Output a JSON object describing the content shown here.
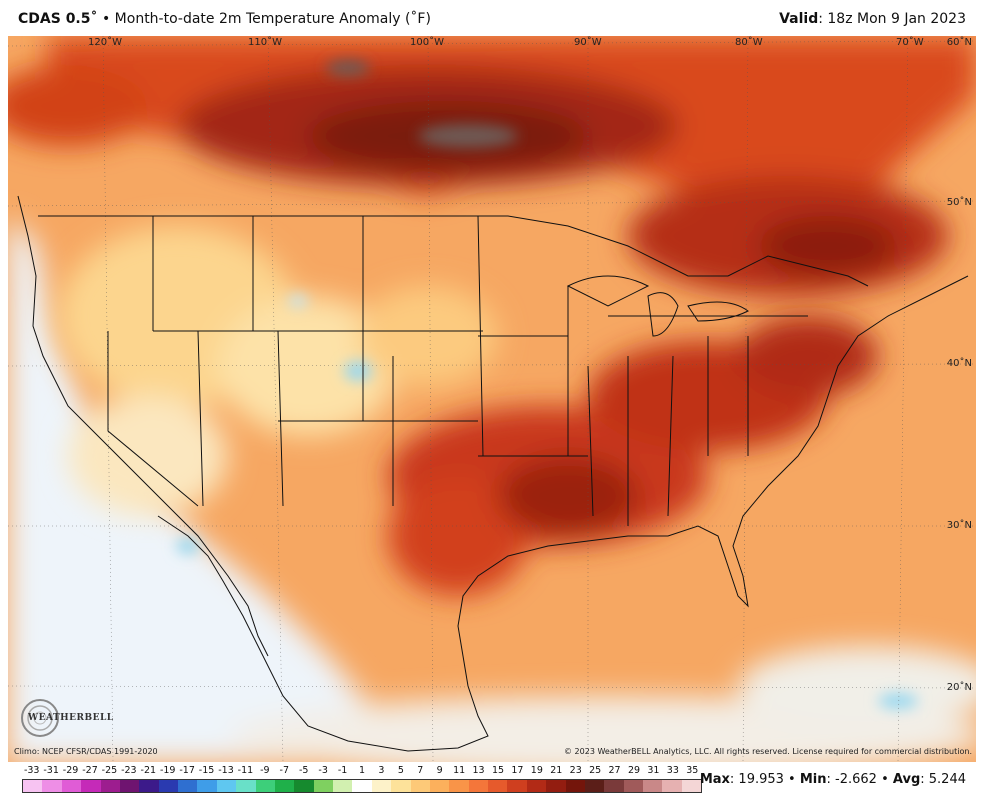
{
  "header": {
    "model": "CDAS 0.5˚",
    "bullet": "•",
    "title": "Month-to-date 2m Temperature Anomaly (˚F)",
    "valid_label": "Valid",
    "valid_time": ": 18z Mon 9 Jan 2023"
  },
  "map": {
    "lon_labels": [
      "120˚W",
      "110˚W",
      "100˚W",
      "90˚W",
      "80˚W",
      "70˚W"
    ],
    "lat_labels": [
      "60˚N",
      "50˚N",
      "40˚N",
      "30˚N",
      "20˚N"
    ],
    "logo_text": "WEATHERBELL",
    "footer_left": "Climo: NCEP CFSR/CDAS 1991-2020",
    "footer_right": "© 2023 WeatherBELL Analytics, LLC. All rights reserved. License required for commercial distribution.",
    "colors": {
      "warm_dark": "#8c1a0a",
      "warm_mid": "#d8431c",
      "warm_light": "#f5a05a",
      "neutral": "#fbe9b5",
      "cool_light": "#e9f3fb",
      "cool": "#9ad8f0",
      "extreme": "#6e5a55"
    }
  },
  "colorbar": {
    "labels": [
      "-33",
      "-31",
      "-29",
      "-27",
      "-25",
      "-23",
      "-21",
      "-19",
      "-17",
      "-15",
      "-13",
      "-11",
      "-9",
      "-7",
      "-5",
      "-3",
      "-1",
      "1",
      "3",
      "5",
      "7",
      "9",
      "11",
      "13",
      "15",
      "17",
      "19",
      "21",
      "23",
      "25",
      "27",
      "29",
      "31",
      "33",
      "35"
    ],
    "colors": [
      "#f7c3f2",
      "#ee8ee6",
      "#e05cd6",
      "#c52ab8",
      "#9d1d8f",
      "#6f1470",
      "#3c1a8a",
      "#2a3ab0",
      "#2f6fd0",
      "#3f9de8",
      "#5fc7f0",
      "#69e0c8",
      "#3dcf7a",
      "#1fb04a",
      "#168a2e",
      "#7fd060",
      "#d2f0b0",
      "#ffffff",
      "#fdf2c9",
      "#fde29a",
      "#fdc978",
      "#fcb05c",
      "#f99448",
      "#f4763a",
      "#e65a2c",
      "#cf3f1f",
      "#b22a16",
      "#931d10",
      "#74150b",
      "#5b1e18",
      "#7a3a3a",
      "#a05a5a",
      "#c98888",
      "#e6b1b1",
      "#f4d6d6"
    ]
  },
  "stats": {
    "max_label": "Max",
    "max": ": 19.953",
    "sep1": " • ",
    "min_label": "Min",
    "min": ": -2.662",
    "sep2": " • ",
    "avg_label": "Avg",
    "avg": ": 5.244"
  }
}
